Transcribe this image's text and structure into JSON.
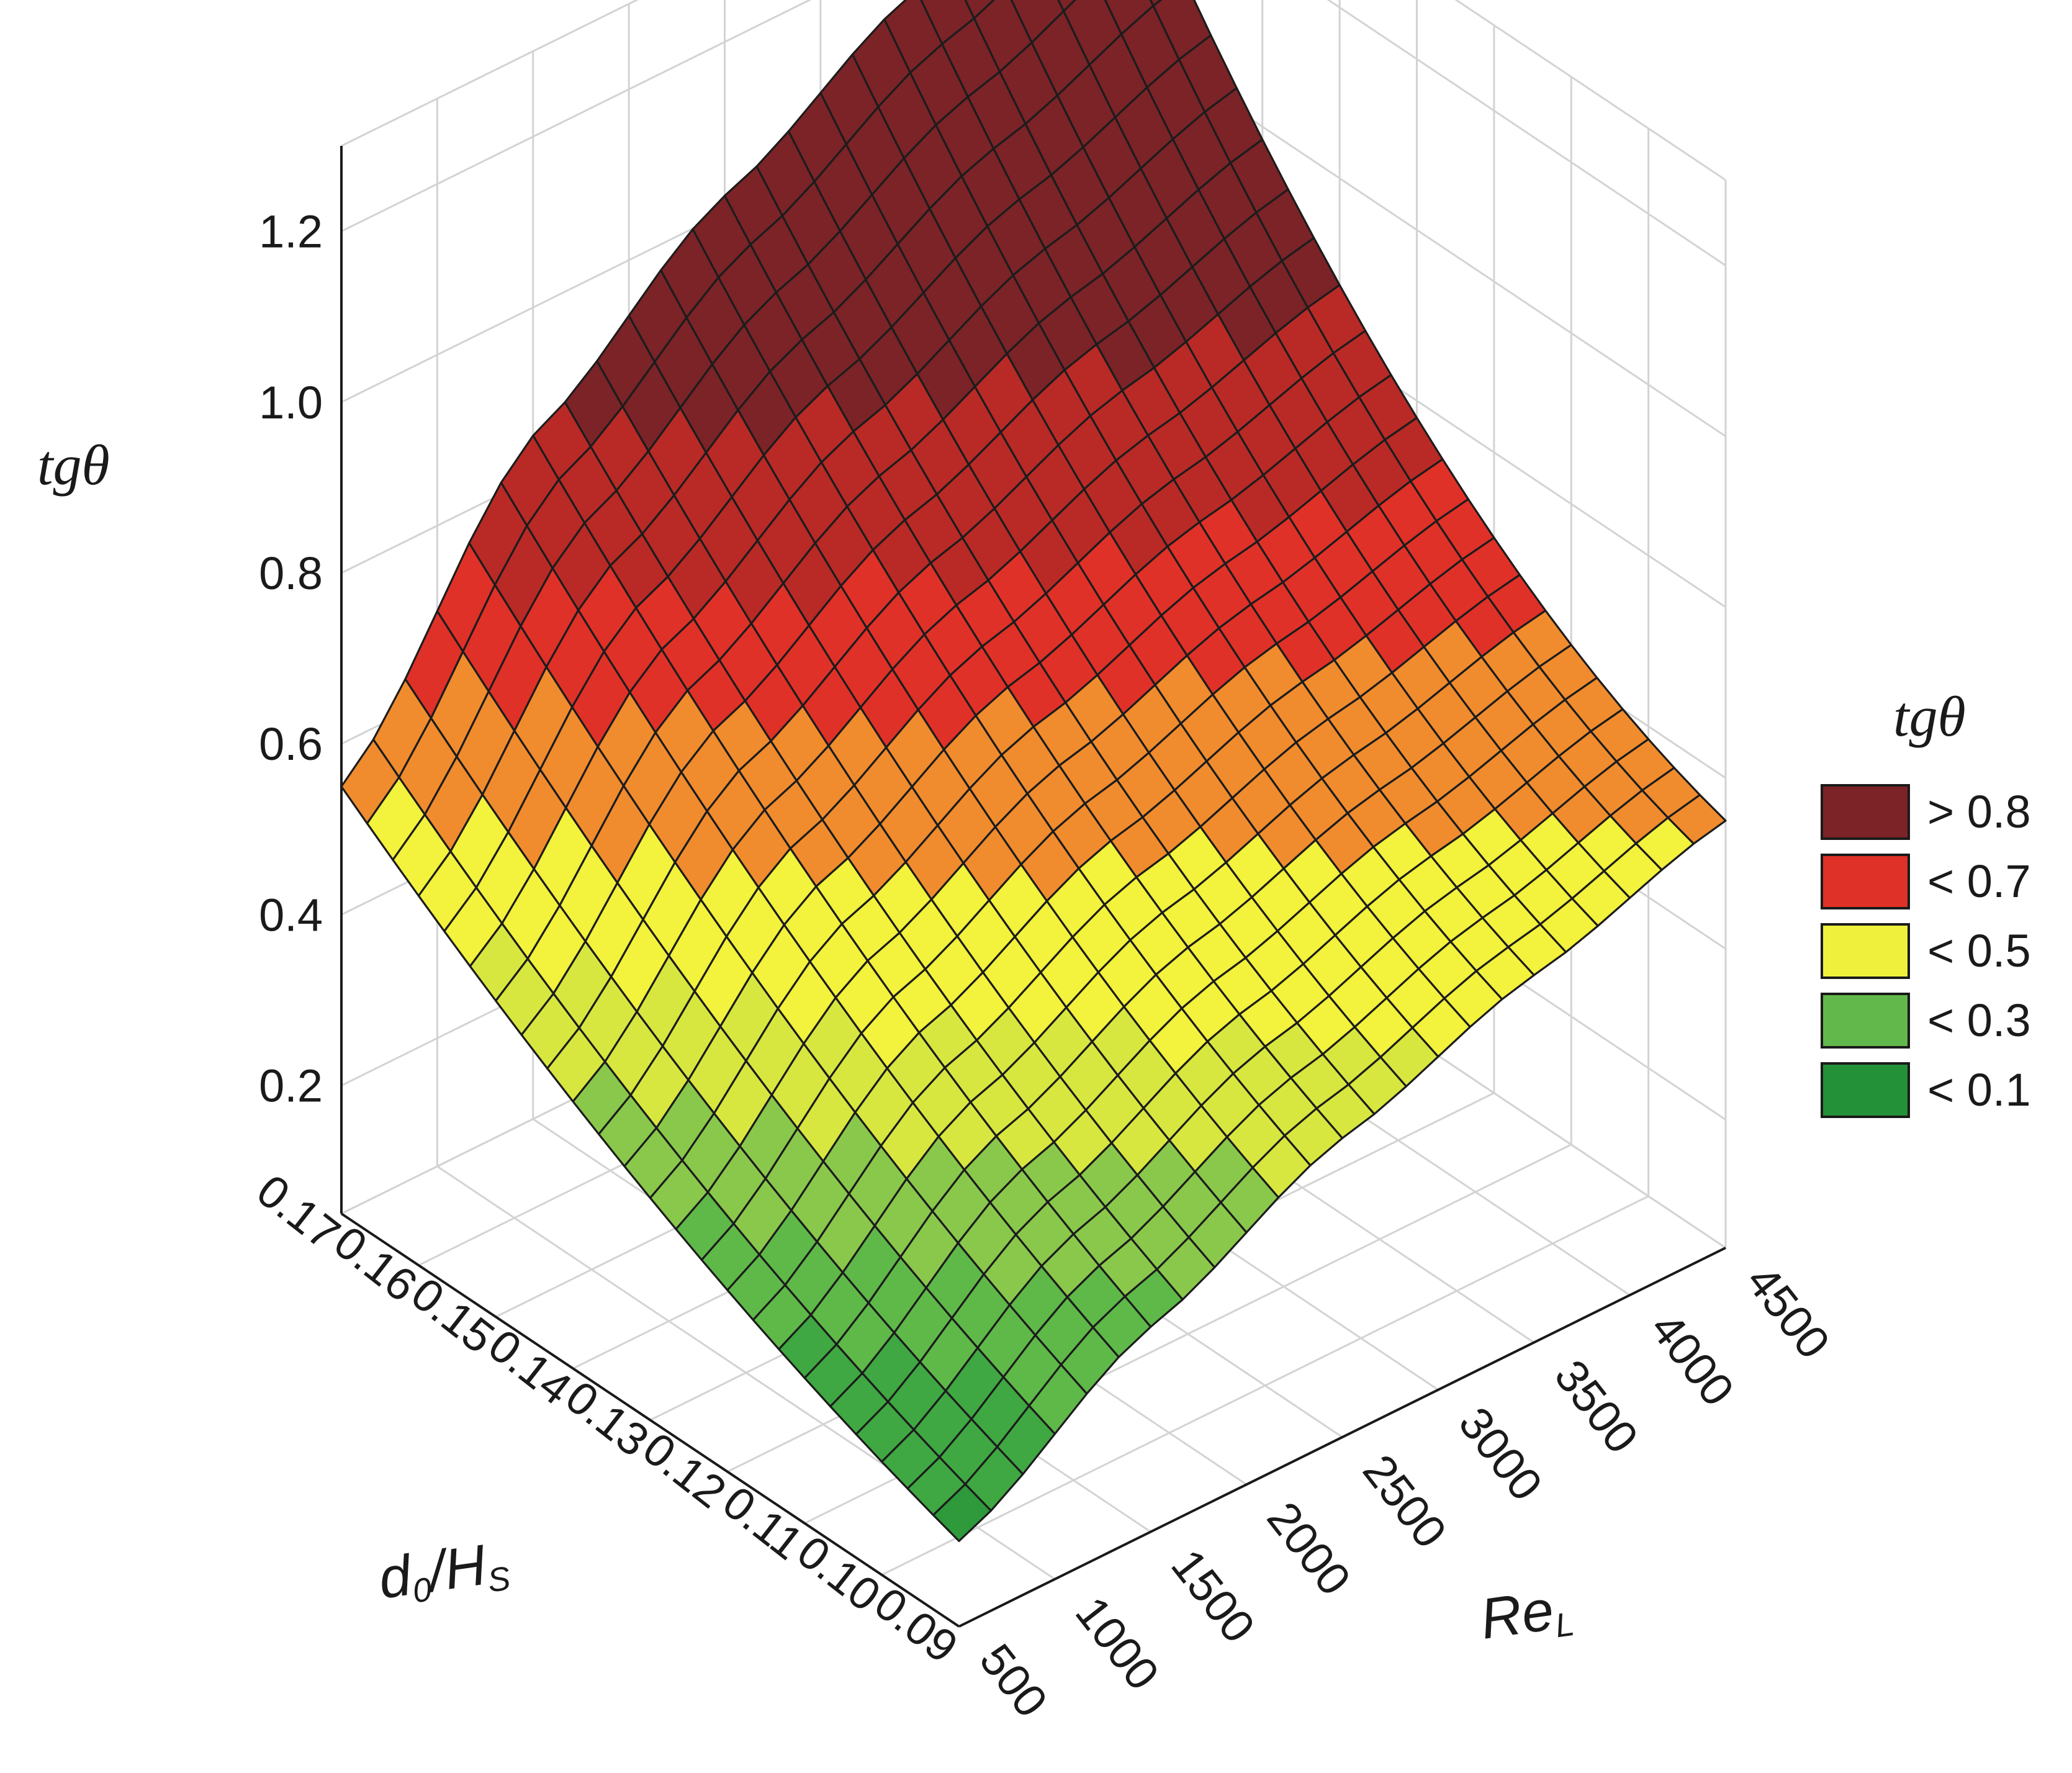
{
  "chart_data": {
    "type": "surface3d",
    "z_label": "tgθ",
    "x_label": {
      "main": "Re",
      "sub": "L"
    },
    "y_label": {
      "main": "d",
      "sub0": "0",
      "mid": "/H",
      "sub1": "S"
    },
    "x_ticks": [
      "500",
      "1000",
      "1500",
      "2000",
      "2500",
      "3000",
      "3500",
      "4000",
      "4500"
    ],
    "x_tick_values": [
      500,
      1000,
      1500,
      2000,
      2500,
      3000,
      3500,
      4000,
      4500
    ],
    "y_ticks": [
      "0.09",
      "0.10",
      "0.11",
      "0.12",
      "0.13",
      "0.14",
      "0.15",
      "0.16",
      "0.17"
    ],
    "y_tick_values": [
      0.09,
      0.1,
      0.11,
      0.12,
      0.13,
      0.14,
      0.15,
      0.16,
      0.17
    ],
    "z_ticks": [
      "0.2",
      "0.4",
      "0.6",
      "0.8",
      "1.0",
      "1.2"
    ],
    "z_tick_values": [
      0.2,
      0.4,
      0.6,
      0.8,
      1.0,
      1.2
    ],
    "xlim": [
      500,
      4500
    ],
    "ylim": [
      0.09,
      0.17
    ],
    "zlim": [
      0.05,
      1.3
    ],
    "grid": true,
    "surface_samples": {
      "re": [
        500,
        1500,
        2500,
        3500,
        4500
      ],
      "d0_hs": [
        0.09,
        0.13,
        0.17
      ],
      "tg_theta": [
        [
          0.15,
          0.29,
          0.4,
          0.48,
          0.55
        ],
        [
          0.31,
          0.52,
          0.64,
          0.72,
          0.78
        ],
        [
          0.55,
          0.85,
          1.02,
          1.15,
          1.25
        ]
      ]
    },
    "legend": {
      "title": "tgθ",
      "position": "right",
      "entries": [
        {
          "label": "> 0.8",
          "color": "#7b2327"
        },
        {
          "label": "< 0.7",
          "color": "#e03128"
        },
        {
          "label": "< 0.5",
          "color": "#eef03c"
        },
        {
          "label": "< 0.3",
          "color": "#62b84a"
        },
        {
          "label": "< 0.1",
          "color": "#239138"
        }
      ]
    },
    "band_colors": [
      "#1e8a36",
      "#2e9a3b",
      "#3fa842",
      "#5fb949",
      "#8ac84c",
      "#d8e73f",
      "#f3f23c",
      "#f08c2e",
      "#e03128",
      "#b92a26",
      "#7b2327"
    ]
  }
}
